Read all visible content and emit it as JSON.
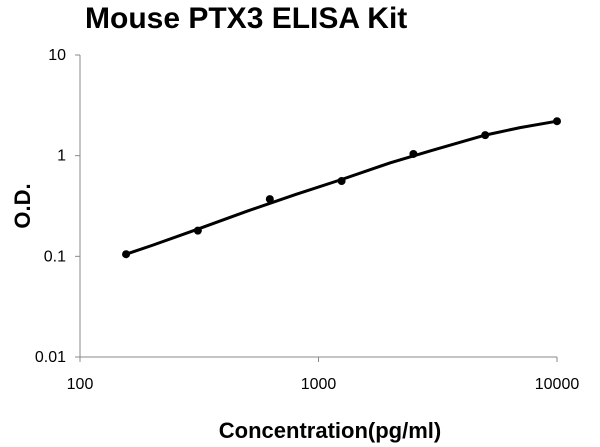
{
  "chart_data": {
    "type": "scatter",
    "title": "Mouse PTX3 ELISA Kit",
    "xlabel": "Concentration(pg/ml)",
    "ylabel": "O.D.",
    "x_scale": "log",
    "y_scale": "log",
    "xlim": [
      100,
      10000
    ],
    "ylim": [
      0.01,
      10
    ],
    "x_ticks": [
      100,
      1000,
      10000
    ],
    "x_tick_labels": [
      "100",
      "1000",
      "10000"
    ],
    "y_ticks": [
      0.01,
      0.1,
      1,
      10
    ],
    "y_tick_labels": [
      "0.01",
      "0.1",
      "1",
      "10"
    ],
    "grid": false,
    "legend": "none",
    "series": [
      {
        "x": [
          156,
          312,
          625,
          1250,
          2500,
          5000,
          10000
        ],
        "y": [
          0.105,
          0.18,
          0.37,
          0.56,
          1.04,
          1.6,
          2.2
        ]
      }
    ],
    "fit_curve": {
      "x": [
        156,
        200,
        300,
        500,
        800,
        1250,
        2000,
        3000,
        5000,
        7000,
        10000
      ],
      "y": [
        0.105,
        0.128,
        0.18,
        0.28,
        0.41,
        0.58,
        0.85,
        1.13,
        1.6,
        1.9,
        2.2
      ]
    },
    "colors": {
      "line": "#000000",
      "points": "#000000",
      "axis": "#888888"
    }
  }
}
